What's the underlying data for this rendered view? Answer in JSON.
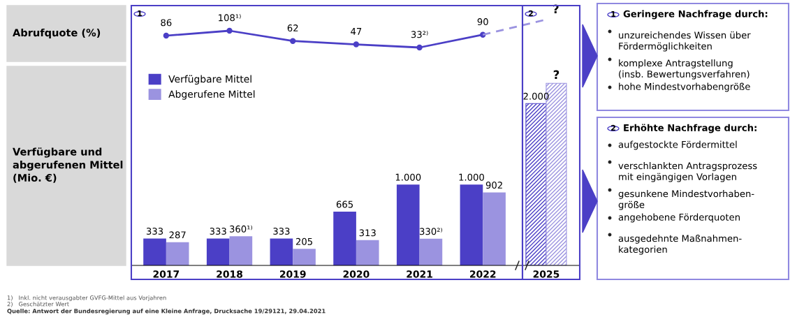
{
  "chart_data": [
    {
      "type": "line",
      "ylabel": "Abrufquote (%)",
      "categories": [
        "2017",
        "2018",
        "2019",
        "2020",
        "2021",
        "2022",
        "2025"
      ],
      "tick_labels": false,
      "marker": "circle",
      "data_labels": true,
      "series": [
        {
          "color": "#4b3fc6",
          "values": [
            86,
            108,
            62,
            47,
            33,
            90,
            null
          ],
          "value_labels": [
            "86",
            "108¹⁾",
            "62",
            "47",
            "33²⁾",
            "90",
            null
          ],
          "line_style": "solid"
        },
        {
          "color": "#9b93e0",
          "values": [
            null,
            null,
            null,
            null,
            null,
            90,
            158
          ],
          "value_labels": [
            null,
            null,
            null,
            null,
            null,
            null,
            "?"
          ],
          "line_style": "dashed",
          "marker": "none"
        }
      ],
      "annotations": [
        "1",
        "2"
      ]
    },
    {
      "type": "bar",
      "ylabel": "Verfügbare und\nabgerufenen Mittel\n(Mio. €)",
      "categories": [
        "2017",
        "2018",
        "2019",
        "2020",
        "2021",
        "2022",
        "2025"
      ],
      "tick_labels": "x",
      "legend": "top left",
      "data_labels": true,
      "series": [
        {
          "name": "Verfügbare Mittel",
          "color": "#4b3fc6",
          "values": [
            333,
            333,
            333,
            665,
            1000,
            1000,
            2000
          ],
          "value_labels": [
            "333",
            "333",
            "333",
            "665",
            "1.000",
            "1.000",
            "2.000"
          ]
        },
        {
          "name": "Abgerufene Mittel",
          "color": "#9b93e0",
          "values": [
            287,
            360,
            205,
            313,
            330,
            902,
            2250
          ],
          "value_labels": [
            "287",
            "360¹⁾",
            "205",
            "313",
            "330²⁾",
            "902",
            "?"
          ]
        }
      ],
      "annotations": [
        "1)   Inkl. nicht verausgabter GVFG-Mittel aus Vorjahren",
        "2)   Geschätzter Wert",
        "Quelle: Antwort der Bundesregierung auf eine Kleine Anfrage, Drucksache 19/29121, 29.04.2021"
      ]
    },
    {
      "type": "other",
      "title": "Geringere Nachfrage durch:",
      "annotations": [
        "1",
        "unzureichendes Wissen über\nFördermöglichkeiten",
        "komplexe Antragstellung\n(insb. Bewertungsverfahren)",
        "hohe Mindestvorhabengröße"
      ]
    },
    {
      "type": "other",
      "title": "Erhöhte Nachfrage durch:",
      "annotations": [
        "2",
        "aufgestockte Fördermittel",
        "verschlankten Antragsprozess\nmit eingängigen Vorlagen",
        "gesunkene Mindestvorhaben-\ngröße",
        "angehobene Förderquoten",
        "ausgedehnte Maßnahmen-\nkategorien"
      ]
    }
  ]
}
